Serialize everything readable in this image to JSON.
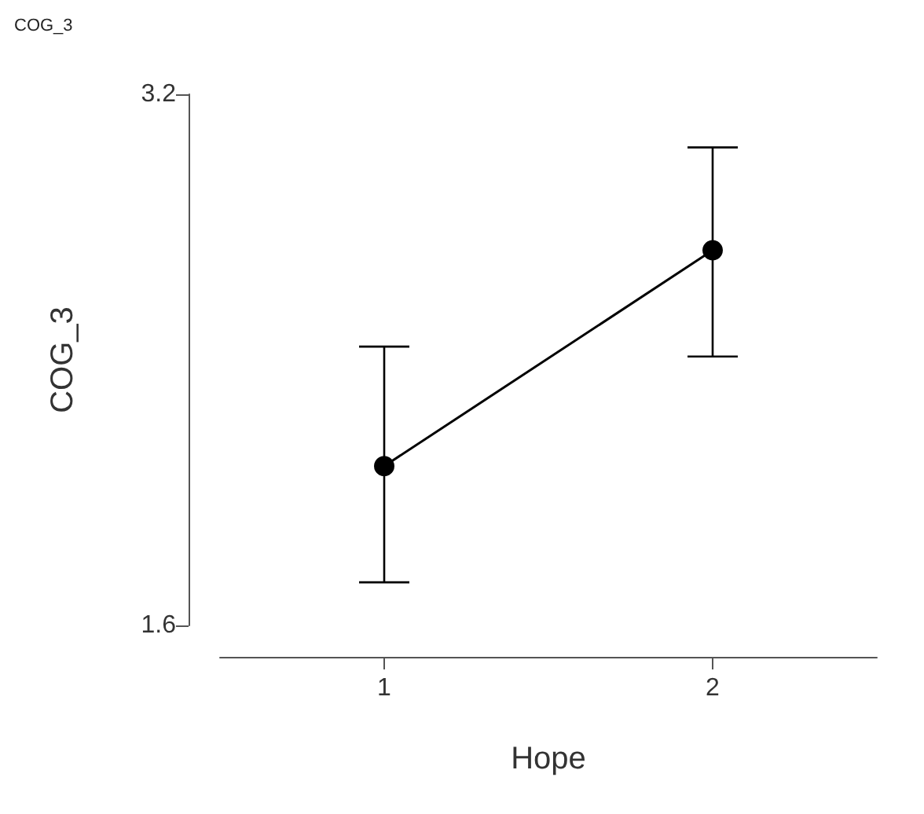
{
  "chart_data": {
    "type": "line",
    "title": "COG_3",
    "xlabel": "Hope",
    "ylabel": "COG_3",
    "categories": [
      "1",
      "2"
    ],
    "series": [
      {
        "color": "#000000",
        "values": [
          2.08,
          2.73
        ],
        "errors": [
          [
            1.73,
            2.44
          ],
          [
            2.41,
            3.04
          ]
        ]
      }
    ],
    "ylim": [
      1.6,
      3.2
    ],
    "yticks": [
      1.6,
      3.2
    ],
    "grid": false,
    "marker": "circle",
    "line_style": "solid"
  }
}
